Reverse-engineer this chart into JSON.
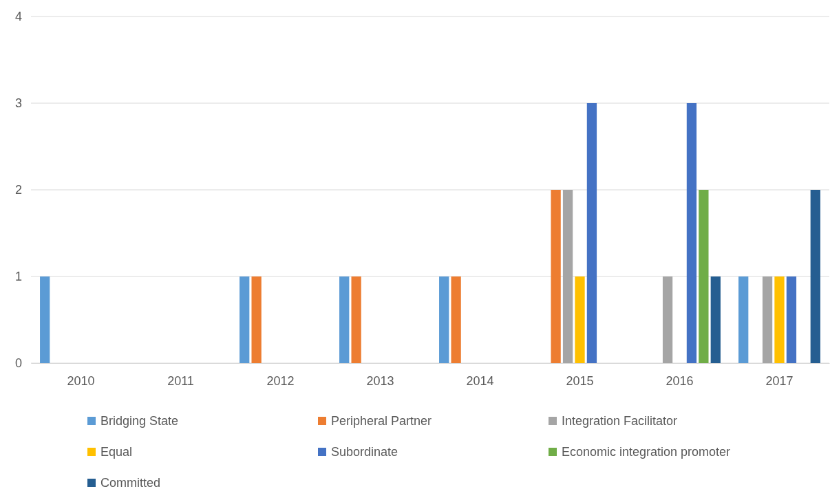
{
  "chart_data": {
    "type": "bar",
    "categories": [
      "2010",
      "2011",
      "2012",
      "2013",
      "2014",
      "2015",
      "2016",
      "2017"
    ],
    "series": [
      {
        "name": "Bridging State",
        "color": "#5b9bd5",
        "values": [
          1,
          0,
          1,
          1,
          1,
          0,
          0,
          1
        ]
      },
      {
        "name": "Peripheral Partner",
        "color": "#ed7d31",
        "values": [
          0,
          0,
          1,
          1,
          1,
          2,
          0,
          0
        ]
      },
      {
        "name": "Integration Facilitator",
        "color": "#a5a5a5",
        "values": [
          0,
          0,
          0,
          0,
          0,
          2,
          1,
          1
        ]
      },
      {
        "name": "Equal",
        "color": "#ffc000",
        "values": [
          0,
          0,
          0,
          0,
          0,
          1,
          0,
          1
        ]
      },
      {
        "name": "Subordinate",
        "color": "#4472c4",
        "values": [
          0,
          0,
          0,
          0,
          0,
          3,
          3,
          1
        ]
      },
      {
        "name": "Economic integration promoter",
        "color": "#70ad47",
        "values": [
          0,
          0,
          0,
          0,
          0,
          0,
          2,
          0
        ]
      },
      {
        "name": "Committed",
        "color": "#255e91",
        "values": [
          0,
          0,
          0,
          0,
          0,
          0,
          1,
          2
        ]
      }
    ],
    "ylim": [
      0,
      4
    ],
    "yticks": [
      0,
      1,
      2,
      3,
      4
    ],
    "grid": "y",
    "legend": "bottom"
  }
}
